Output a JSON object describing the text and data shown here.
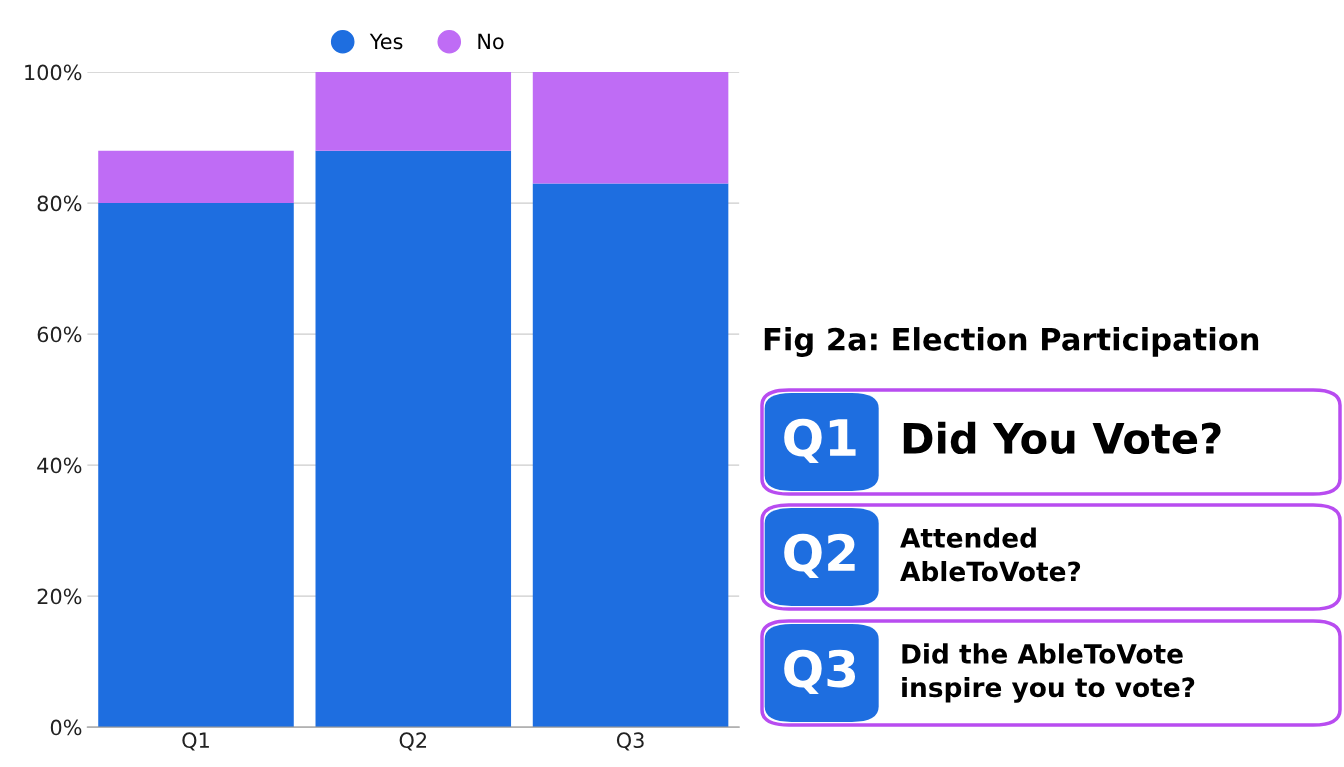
{
  "chart_data": {
    "type": "bar",
    "title": "Fig 2a: Election Participation",
    "categories": [
      "Q1",
      "Q2",
      "Q3"
    ],
    "stacked": true,
    "series": [
      {
        "name": "Yes",
        "color": "#1e6ee0",
        "values": [
          80,
          88,
          83
        ]
      },
      {
        "name": "No",
        "color": "#bf6cf5",
        "values": [
          8,
          12,
          17
        ]
      }
    ],
    "ylim": [
      0,
      100
    ],
    "yticks": [
      {
        "value": 0,
        "label": "0%"
      },
      {
        "value": 20,
        "label": "20%"
      },
      {
        "value": 40,
        "label": "40%"
      },
      {
        "value": 60,
        "label": "60%"
      },
      {
        "value": 80,
        "label": "80%"
      },
      {
        "value": 100,
        "label": "100%"
      }
    ],
    "grid": "y",
    "legend": "top",
    "annotations": [
      "Q1",
      "Did You Vote?",
      "Q2",
      "Attended\nAbleToVote?",
      "Q3",
      "Did the AbleToVote\ninspire you to vote?"
    ]
  }
}
